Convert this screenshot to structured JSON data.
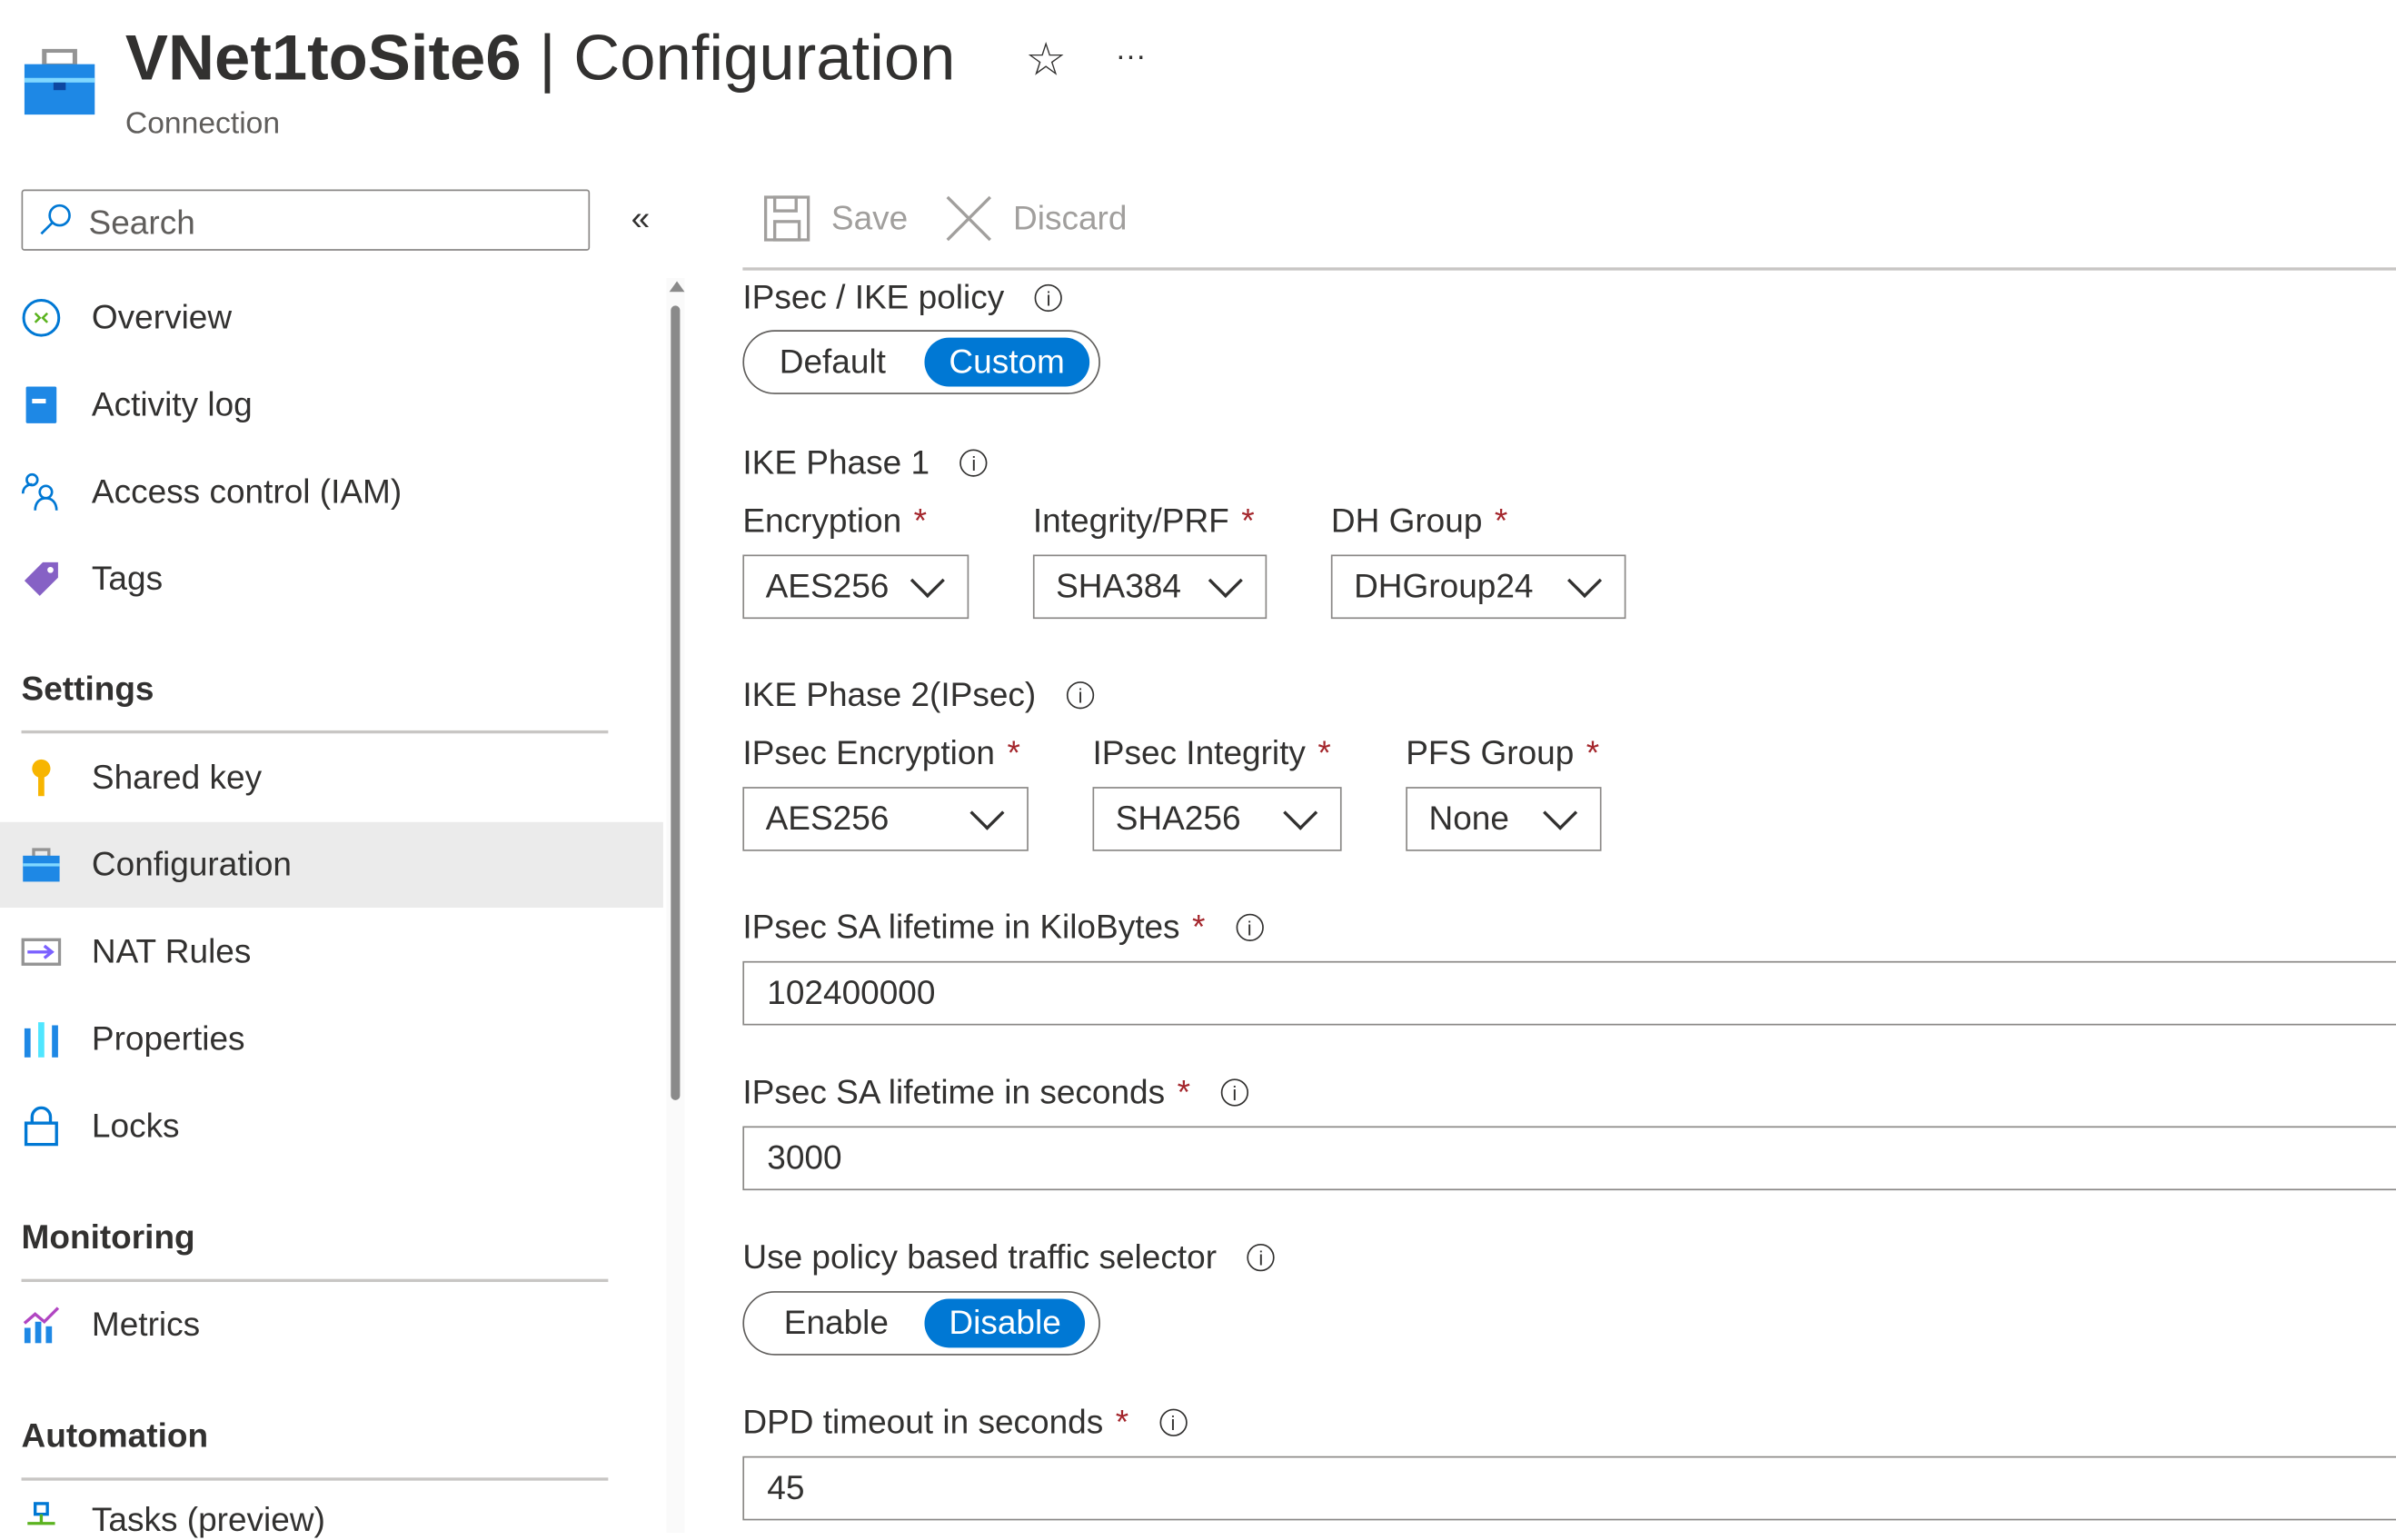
{
  "header": {
    "resource_name": "VNet1toSite6",
    "separator": " | ",
    "page": "Configuration",
    "subtitle": "Connection",
    "favorite_icon": "star-icon",
    "more_icon": "ellipsis-icon",
    "more": "···",
    "star": "☆"
  },
  "sidebar": {
    "search_placeholder": "Search",
    "collapse": "«",
    "items": [
      {
        "label": "Overview"
      },
      {
        "label": "Activity log"
      },
      {
        "label": "Access control (IAM)"
      },
      {
        "label": "Tags"
      }
    ],
    "settings": {
      "title": "Settings",
      "items": [
        {
          "label": "Shared key"
        },
        {
          "label": "Configuration"
        },
        {
          "label": "NAT Rules"
        },
        {
          "label": "Properties"
        },
        {
          "label": "Locks"
        }
      ]
    },
    "monitoring": {
      "title": "Monitoring",
      "items": [
        {
          "label": "Metrics"
        }
      ]
    },
    "automation": {
      "title": "Automation",
      "items": [
        {
          "label": "Tasks (preview)"
        }
      ]
    }
  },
  "toolbar": {
    "save": "Save",
    "discard": "Discard"
  },
  "form": {
    "policy": {
      "label": "IPsec / IKE policy",
      "options": [
        "Default",
        "Custom"
      ],
      "selected": "Custom"
    },
    "phase1": {
      "label": "IKE Phase 1",
      "encryption_label": "Encryption",
      "encryption": "AES256",
      "integrity_label": "Integrity/PRF",
      "integrity": "SHA384",
      "dh_label": "DH Group",
      "dh": "DHGroup24"
    },
    "phase2": {
      "label": "IKE Phase 2(IPsec)",
      "encryption_label": "IPsec Encryption",
      "encryption": "AES256",
      "integrity_label": "IPsec Integrity",
      "integrity": "SHA256",
      "pfs_label": "PFS Group",
      "pfs": "None"
    },
    "sa_kb": {
      "label": "IPsec SA lifetime in KiloBytes",
      "value": "102400000"
    },
    "sa_sec": {
      "label": "IPsec SA lifetime in seconds",
      "value": "3000"
    },
    "selector": {
      "label": "Use policy based traffic selector",
      "options": [
        "Enable",
        "Disable"
      ],
      "selected": "Disable"
    },
    "dpd": {
      "label": "DPD timeout in seconds",
      "value": "45"
    },
    "required_mark": "*",
    "info": "i"
  },
  "colors": {
    "accent": "#0078d4",
    "required": "#a4262c",
    "selected_bg": "#ebebeb"
  }
}
